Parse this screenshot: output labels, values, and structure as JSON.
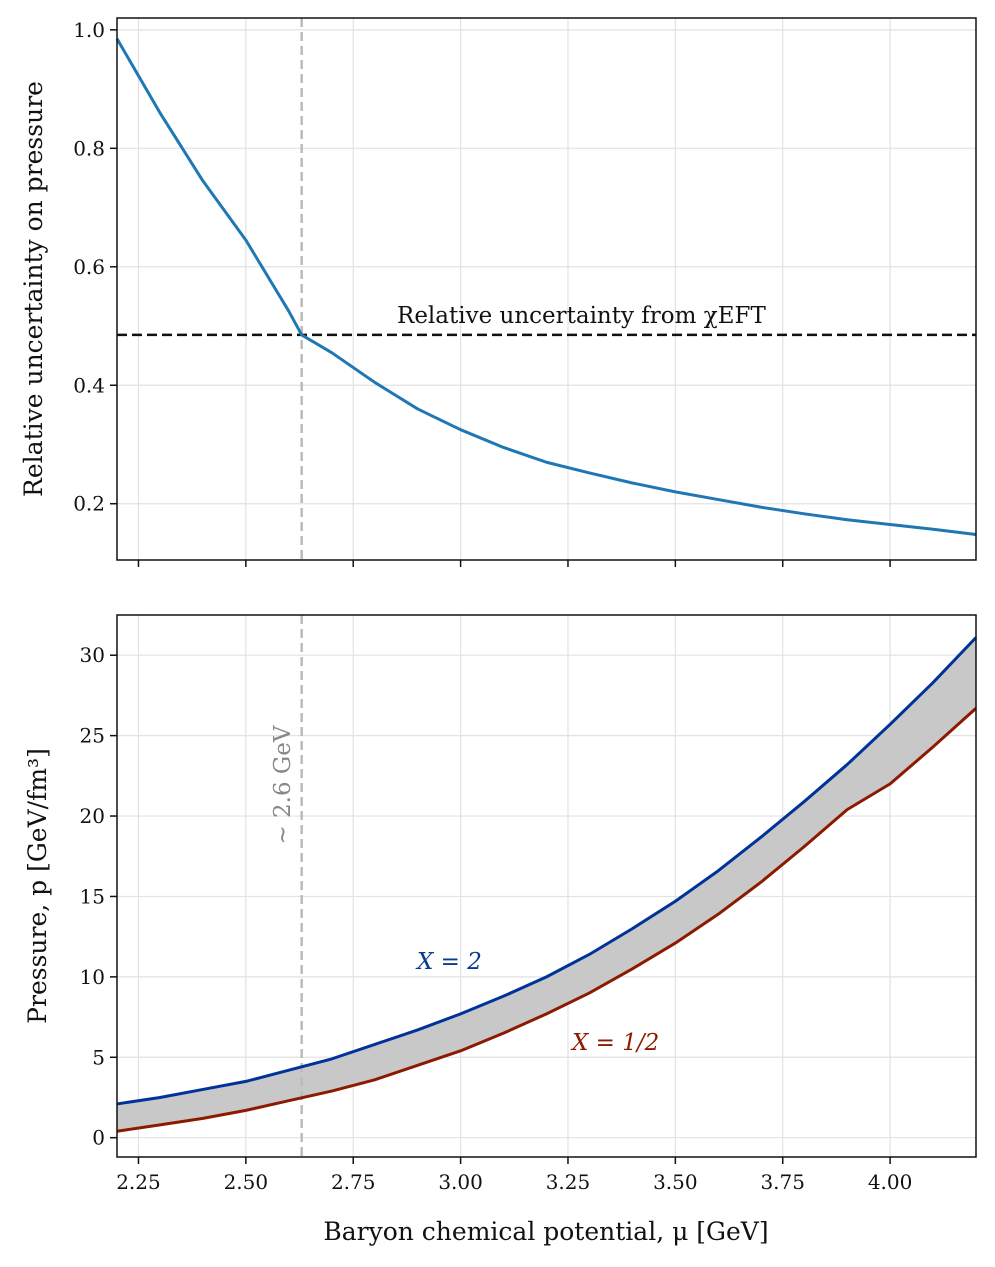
{
  "chart_data": [
    {
      "type": "line",
      "panel": "top",
      "xlabel": "",
      "ylabel": "Relative uncertainty on pressure",
      "xlim": [
        2.2,
        4.2
      ],
      "ylim": [
        0.105,
        1.02
      ],
      "xticks": [
        2.25,
        2.5,
        2.75,
        3.0,
        3.25,
        3.5,
        3.75,
        4.0
      ],
      "yticks": [
        0.2,
        0.4,
        0.6,
        0.8,
        1.0
      ],
      "ytick_labels": [
        "0.2",
        "0.4",
        "0.6",
        "0.8",
        "1.0"
      ],
      "grid": true,
      "series": [
        {
          "name": "relative uncertainty",
          "color": "#1f77b4",
          "x": [
            2.2,
            2.3,
            2.4,
            2.5,
            2.6,
            2.63,
            2.7,
            2.8,
            2.9,
            3.0,
            3.1,
            3.2,
            3.3,
            3.4,
            3.5,
            3.6,
            3.7,
            3.8,
            3.9,
            4.0,
            4.1,
            4.2
          ],
          "y": [
            0.985,
            0.86,
            0.745,
            0.645,
            0.525,
            0.485,
            0.455,
            0.405,
            0.36,
            0.325,
            0.295,
            0.27,
            0.252,
            0.235,
            0.22,
            0.207,
            0.194,
            0.183,
            0.173,
            0.165,
            0.157,
            0.148
          ]
        }
      ],
      "hlines": [
        {
          "y": 0.485,
          "color": "#111111",
          "style": "dashed",
          "label": "Relative uncertainty from χEFT"
        }
      ],
      "vlines": [
        {
          "x": 2.63,
          "color": "#bbbbbb",
          "style": "dashed"
        }
      ],
      "annotations": [
        {
          "text": "Relative uncertainty from χEFT",
          "x": 2.85,
          "y": 0.505,
          "color": "#111111"
        }
      ]
    },
    {
      "type": "area",
      "panel": "bottom",
      "xlabel": "Baryon chemical potential, μ [GeV]",
      "ylabel": "Pressure, p [GeV/fm³]",
      "xlim": [
        2.2,
        4.2
      ],
      "ylim": [
        -1.2,
        32.5
      ],
      "xticks": [
        2.25,
        2.5,
        2.75,
        3.0,
        3.25,
        3.5,
        3.75,
        4.0
      ],
      "xtick_labels": [
        "2.25",
        "2.50",
        "2.75",
        "3.00",
        "3.25",
        "3.50",
        "3.75",
        "4.00"
      ],
      "yticks": [
        0,
        5,
        10,
        15,
        20,
        25,
        30
      ],
      "ytick_labels": [
        "0",
        "5",
        "10",
        "15",
        "20",
        "25",
        "30"
      ],
      "grid": true,
      "band_color": "#c8c8c8",
      "series": [
        {
          "name": "X = 2",
          "color": "#003399",
          "x": [
            2.2,
            2.3,
            2.4,
            2.5,
            2.6,
            2.7,
            2.8,
            2.9,
            3.0,
            3.1,
            3.2,
            3.3,
            3.4,
            3.5,
            3.6,
            3.7,
            3.8,
            3.9,
            4.0,
            4.1,
            4.2
          ],
          "y": [
            2.1,
            2.5,
            3.0,
            3.5,
            4.2,
            4.9,
            5.8,
            6.7,
            7.7,
            8.8,
            10.0,
            11.4,
            13.0,
            14.7,
            16.6,
            18.7,
            20.9,
            23.2,
            25.7,
            28.3,
            31.1
          ]
        },
        {
          "name": "X = 1/2",
          "color": "#8b1a00",
          "x": [
            2.2,
            2.3,
            2.4,
            2.5,
            2.6,
            2.7,
            2.8,
            2.9,
            3.0,
            3.1,
            3.2,
            3.3,
            3.4,
            3.5,
            3.6,
            3.7,
            3.8,
            3.9,
            4.0,
            4.1,
            4.2
          ],
          "y": [
            0.4,
            0.8,
            1.2,
            1.7,
            2.3,
            2.9,
            3.6,
            4.5,
            5.4,
            6.5,
            7.7,
            9.0,
            10.5,
            12.1,
            13.9,
            15.9,
            18.1,
            20.4,
            22.0,
            24.3,
            26.7
          ]
        }
      ],
      "vlines": [
        {
          "x": 2.63,
          "color": "#bbbbbb",
          "style": "dashed"
        }
      ],
      "annotations": [
        {
          "text": "X = 2",
          "x": 2.9,
          "y": 10.6,
          "color": "#0a3a8c"
        },
        {
          "text": "X = 1/2",
          "x": 3.26,
          "y": 5.6,
          "color": "#8b1a00"
        },
        {
          "text": "∼ 2.6 GeV",
          "x": 2.595,
          "y": 23.0,
          "color": "#888888",
          "rotate": -90
        }
      ]
    }
  ]
}
